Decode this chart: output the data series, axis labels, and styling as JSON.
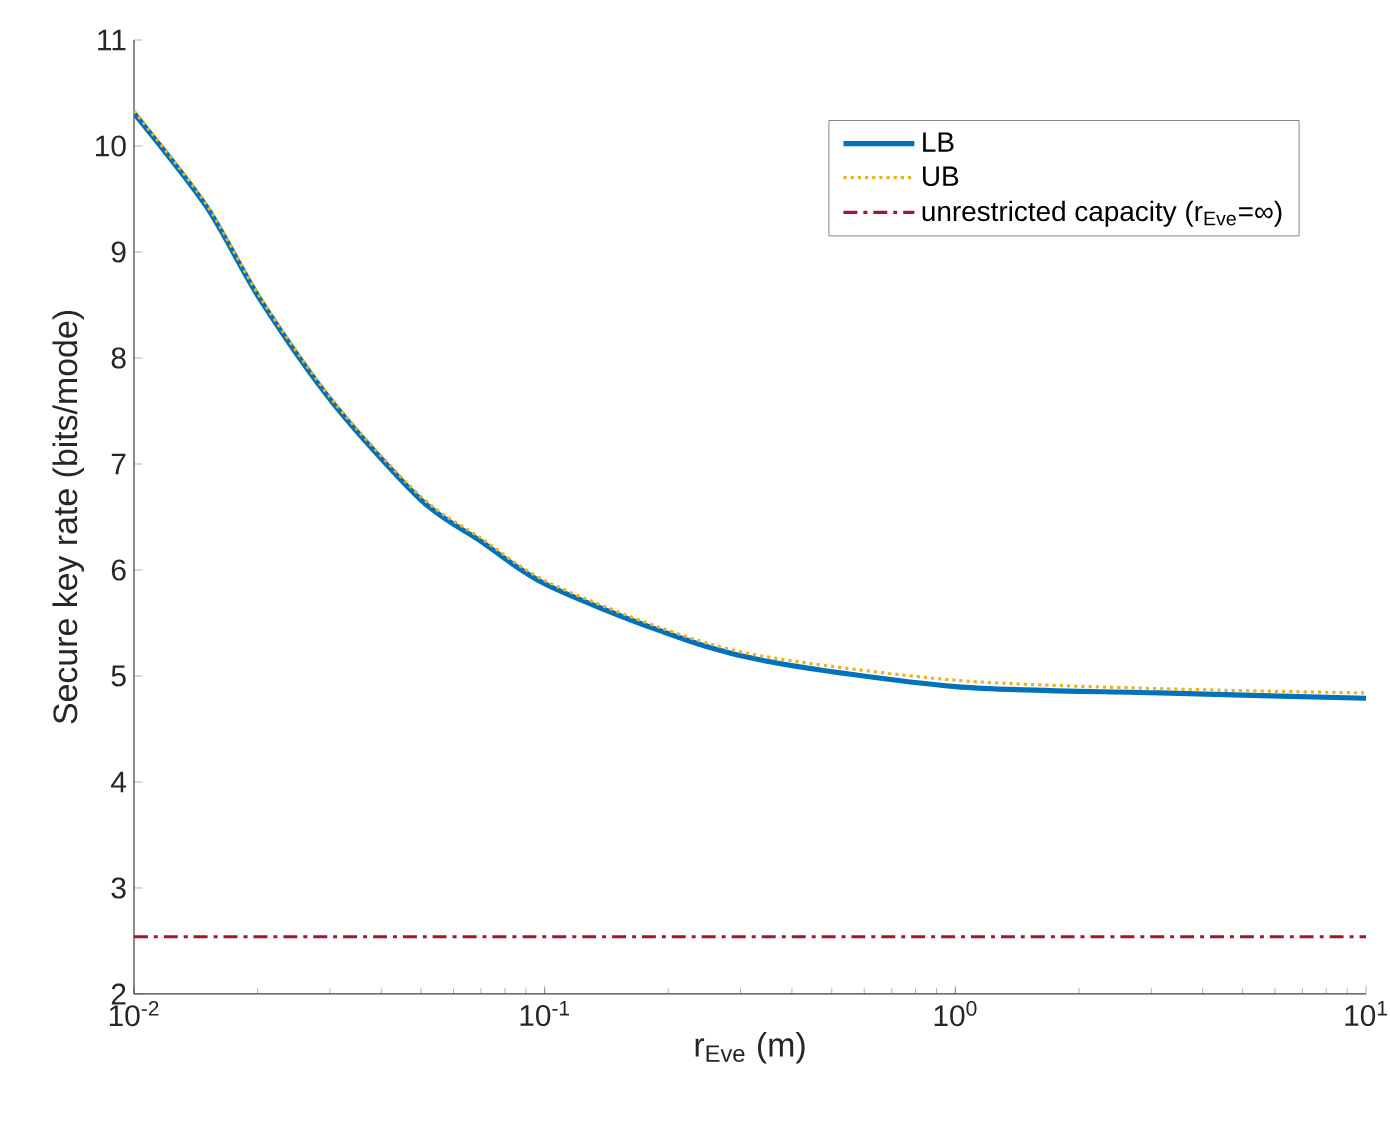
{
  "chart_data": {
    "type": "line",
    "xlabel": "r$_{Eve}$ (m)",
    "ylabel": "Secure key rate (bits/mode)",
    "log": "x",
    "xlim": [
      0.01,
      10
    ],
    "ylim": [
      2,
      11
    ],
    "xticks": [
      {
        "value": 0.01,
        "label": "10$^{-2}$"
      },
      {
        "value": 0.1,
        "label": "10$^{-1}$"
      },
      {
        "value": 1,
        "label": "10$^{0}$"
      },
      {
        "value": 10,
        "label": "10$^{1}$"
      }
    ],
    "yticks": [
      2,
      3,
      4,
      5,
      6,
      7,
      8,
      9,
      10,
      11
    ],
    "grid": false,
    "legend": "top right",
    "marker": "none",
    "series": [
      {
        "name": "LB",
        "color": "#0072bd",
        "line_style": "solid",
        "x": [
          0.01,
          0.015,
          0.0203,
          0.0306,
          0.05,
          0.07,
          0.1,
          0.19,
          0.336,
          1,
          3.16,
          10
        ],
        "values": [
          10.31,
          9.43,
          8.55,
          7.57,
          6.66,
          6.27,
          5.87,
          5.43,
          5.15,
          4.9,
          4.84,
          4.79
        ]
      },
      {
        "name": "UB",
        "color": "#edb120",
        "line_style": "dotted",
        "x": [
          0.01,
          0.015,
          0.0203,
          0.0306,
          0.05,
          0.07,
          0.1,
          0.19,
          0.336,
          1,
          3.16,
          10
        ],
        "values": [
          10.33,
          9.45,
          8.57,
          7.59,
          6.69,
          6.3,
          5.9,
          5.46,
          5.19,
          4.96,
          4.88,
          4.84
        ]
      },
      {
        "name": "unrestricted capacity (r$_{Eve}$=∞)",
        "color": "#a2142f",
        "line_style": "dashdot",
        "x": [
          0.01,
          10
        ],
        "values": [
          2.54,
          2.54
        ]
      }
    ]
  }
}
